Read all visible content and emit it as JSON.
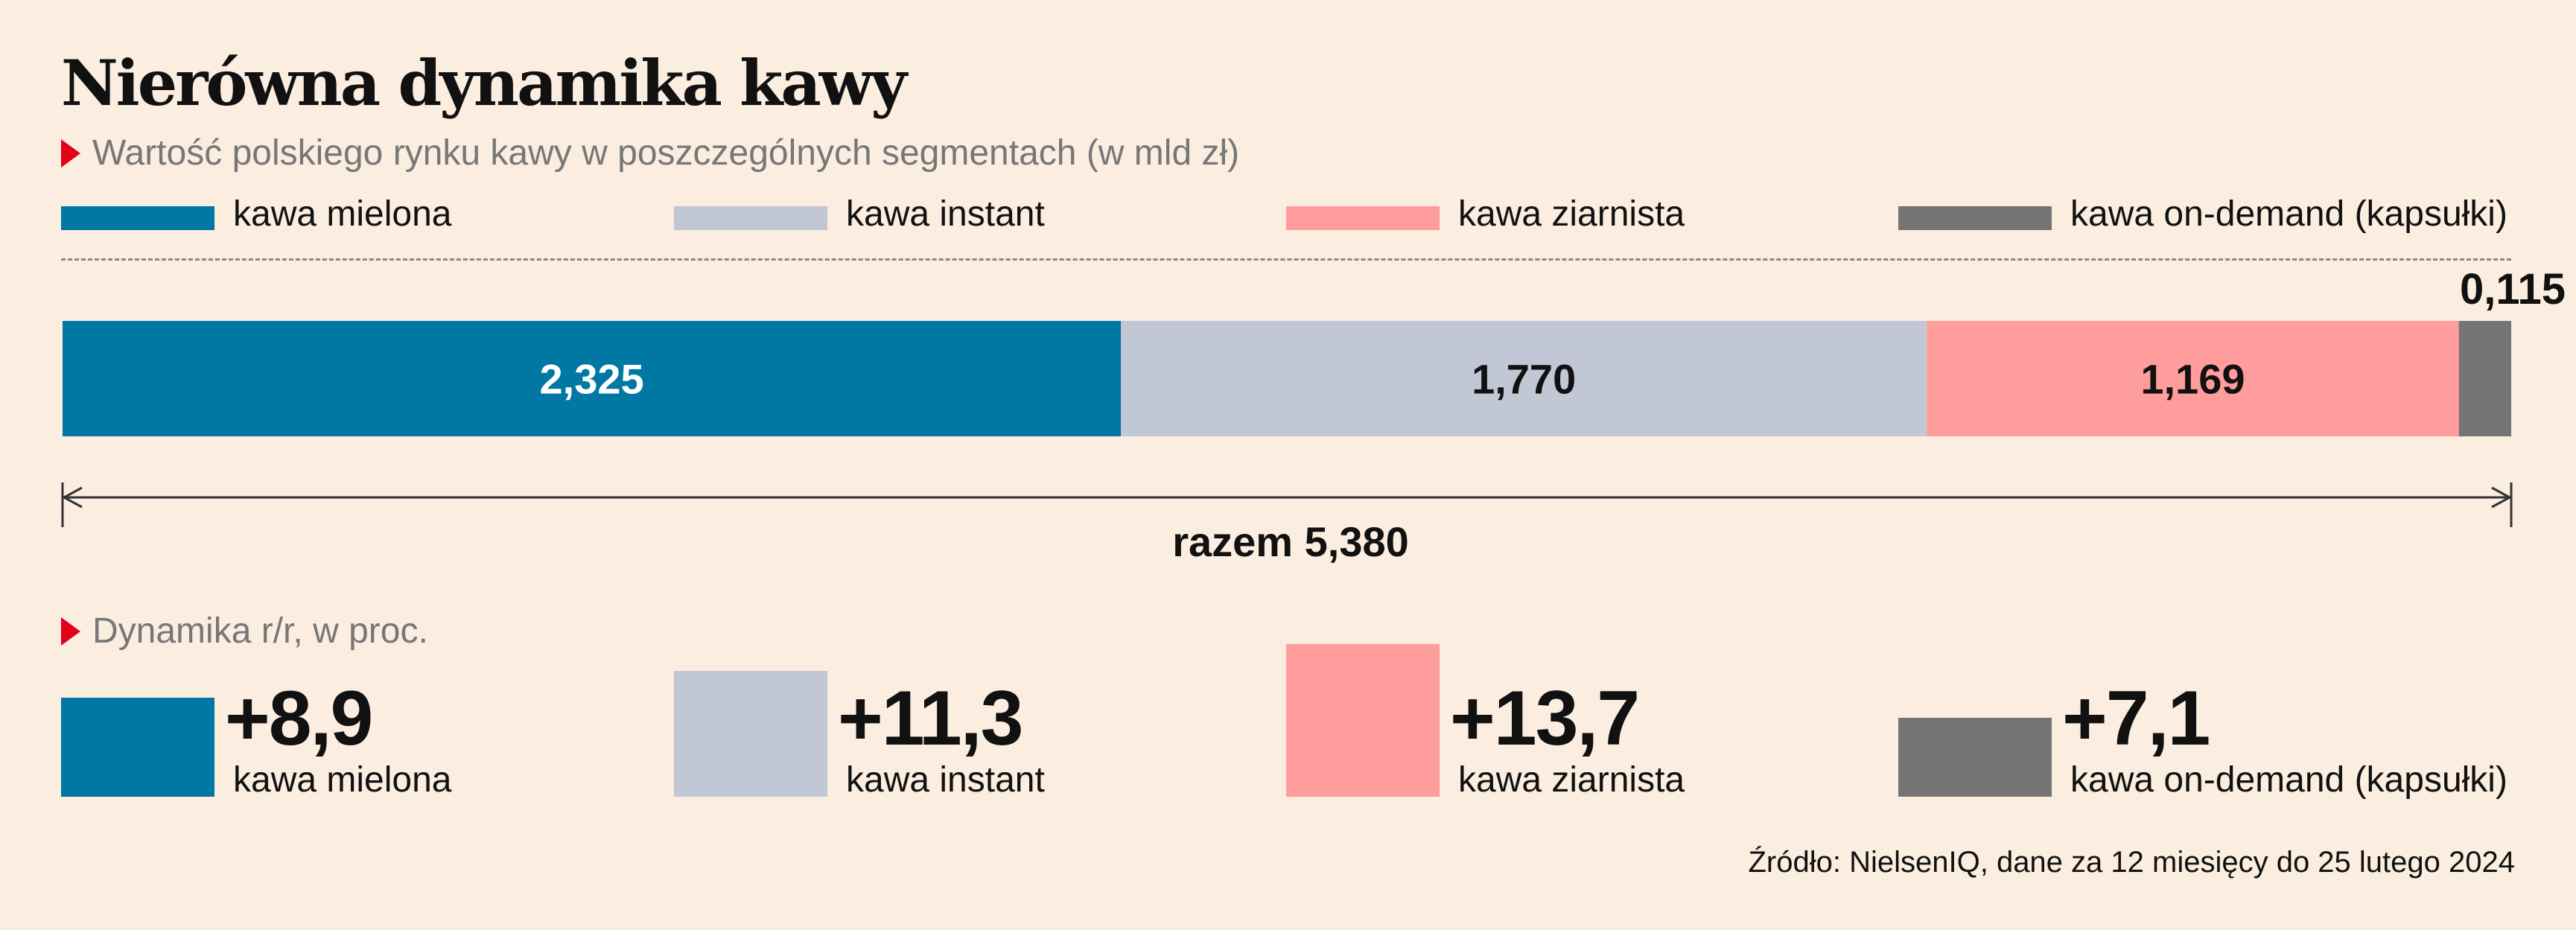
{
  "title": "Nierówna dynamika kawy",
  "subtitle": "Wartość polskiego rynku kawy w poszczególnych segmentach (w mld zł)",
  "legend": [
    {
      "label": "kawa mielona",
      "color": "#0078a3"
    },
    {
      "label": "kawa instant",
      "color": "#c2c7d6"
    },
    {
      "label": "kawa ziarnista",
      "color": "#ff9c9c"
    },
    {
      "label": "kawa on-demand (kapsułki)",
      "color": "#747474"
    }
  ],
  "total_label": "razem 5,380",
  "dynamics_label": "Dynamika r/r, w proc.",
  "source": "Źródło: NielsenIQ, dane za 12 miesięcy do 25 lutego 2024",
  "chart_data": [
    {
      "type": "bar",
      "orientation": "horizontal-stacked",
      "title": "Wartość polskiego rynku kawy w poszczególnych segmentach (w mld zł)",
      "series": [
        {
          "name": "kawa mielona",
          "value": 2.325,
          "label": "2,325",
          "color": "#0078a3",
          "label_color": "#ffffff"
        },
        {
          "name": "kawa instant",
          "value": 1.77,
          "label": "1,770",
          "color": "#c2c7d6",
          "label_color": "#111111"
        },
        {
          "name": "kawa ziarnista",
          "value": 1.169,
          "label": "1,169",
          "color": "#ff9c9c",
          "label_color": "#111111"
        },
        {
          "name": "kawa on-demand (kapsułki)",
          "value": 0.115,
          "label": "0,115",
          "color": "#747474",
          "label_color": "#111111"
        }
      ],
      "total": 5.38,
      "total_label": "razem 5,380"
    },
    {
      "type": "bar",
      "title": "Dynamika r/r, w proc.",
      "categories": [
        "kawa mielona",
        "kawa instant",
        "kawa ziarnista",
        "kawa on-demand (kapsułki)"
      ],
      "values": [
        8.9,
        11.3,
        13.7,
        7.1
      ],
      "value_labels": [
        "+8,9",
        "+11,3",
        "+13,7",
        "+7,1"
      ],
      "colors": [
        "#0078a3",
        "#c2c7d6",
        "#ff9c9c",
        "#747474"
      ]
    }
  ]
}
